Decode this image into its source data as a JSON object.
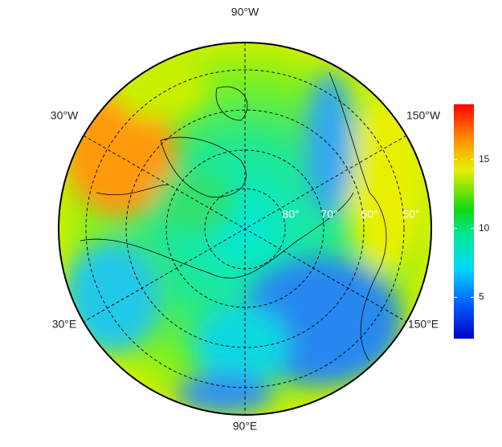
{
  "map": {
    "longitude_labels": [
      "90°W",
      "30°W",
      "150°W",
      "30°E",
      "150°E",
      "90°E"
    ],
    "latitude_labels": [
      "80°",
      "70°",
      "60°",
      "50°"
    ],
    "colorbar": {
      "lim": [
        2,
        19
      ],
      "ticks": [
        5,
        10,
        15
      ]
    }
  }
}
